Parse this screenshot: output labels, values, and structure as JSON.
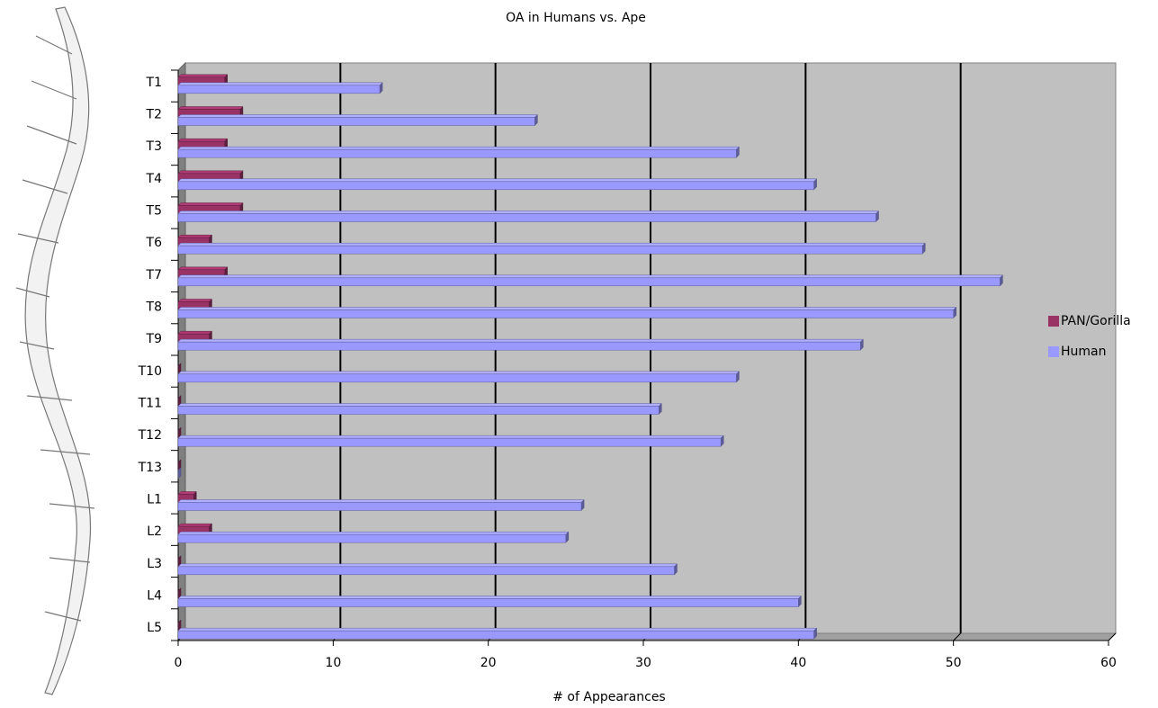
{
  "chart_data": {
    "type": "bar",
    "orientation": "horizontal",
    "title": "OA in Humans vs. Ape",
    "x_label": "# of Appearances",
    "categories": [
      "T1",
      "T2",
      "T3",
      "T4",
      "T5",
      "T6",
      "T7",
      "T8",
      "T9",
      "T10",
      "T11",
      "T12",
      "T13",
      "L1",
      "L2",
      "L3",
      "L4",
      "L5"
    ],
    "series": [
      {
        "name": "PAN/Gorilla",
        "color": "#993366",
        "values": [
          3,
          4,
          3,
          4,
          4,
          2,
          3,
          2,
          2,
          0,
          0,
          0,
          0,
          1,
          2,
          0,
          0,
          0
        ]
      },
      {
        "name": "Human",
        "color": "#9999ff",
        "values": [
          13,
          23,
          36,
          41,
          45,
          48,
          53,
          50,
          44,
          36,
          31,
          35,
          0,
          26,
          25,
          32,
          40,
          41
        ]
      }
    ],
    "xlim": [
      0,
      60
    ],
    "xticks": [
      0,
      10,
      20,
      30,
      40,
      50,
      60
    ],
    "grid": true,
    "legend": "right"
  }
}
